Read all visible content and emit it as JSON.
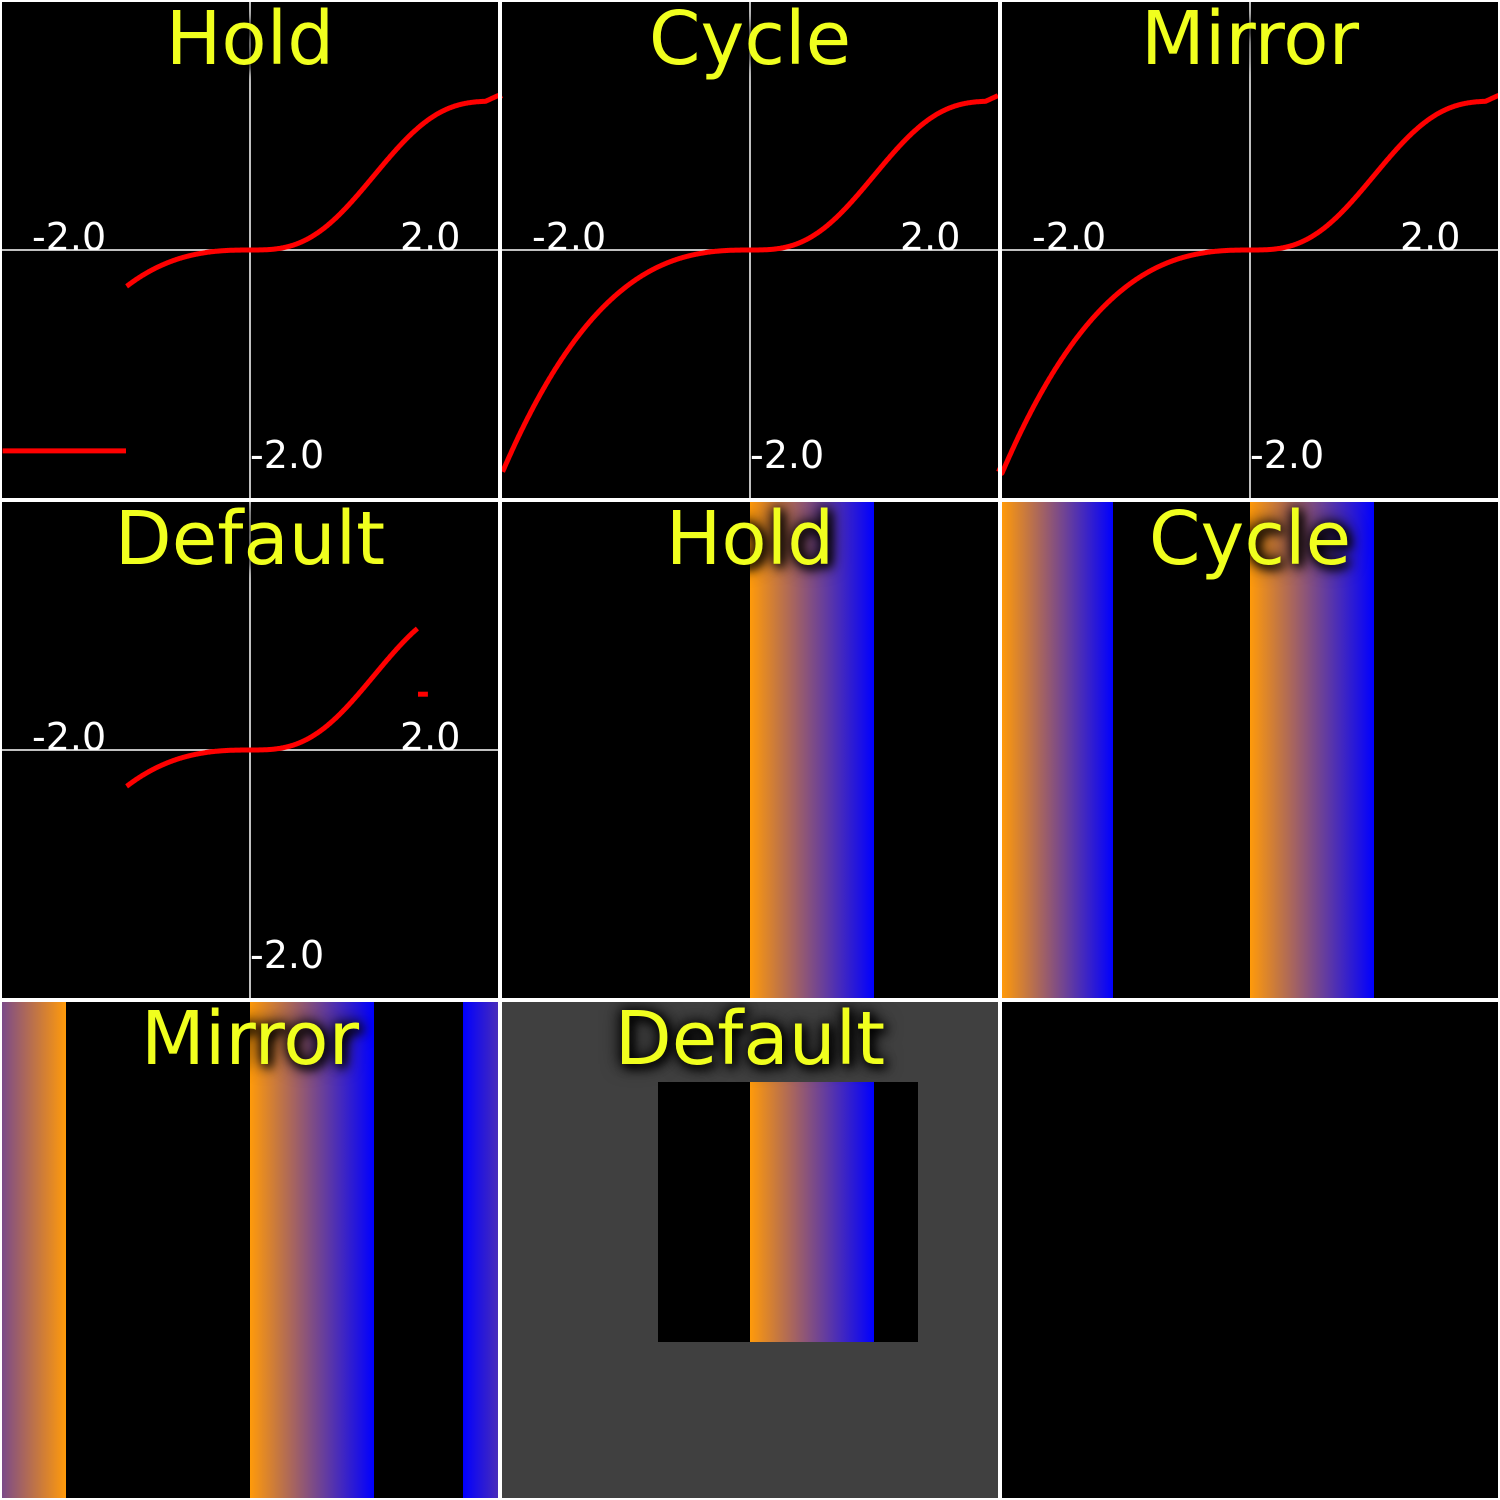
{
  "colors": {
    "background": "#000000",
    "grid_background": "#ffffff",
    "curve": "#ff0000",
    "axis": "#ffffff",
    "title": "#f0ff1e",
    "gradient_start": "#ff9a0a",
    "gradient_end": "#0000ff",
    "default_surround": "#404040"
  },
  "chart_data": [
    {
      "type": "line",
      "title": "Hold",
      "extend_mode": "hold",
      "xlim": [
        -2.0,
        2.0
      ],
      "ylim": [
        -2.0,
        2.0
      ],
      "tick_labels": {
        "x_min": "-2.0",
        "x_max": "2.0",
        "y_min": "-2.0"
      },
      "series": [
        {
          "x_range": [
            -2.0,
            2.0
          ],
          "y_range": [
            -1.62,
            1.2
          ]
        }
      ]
    },
    {
      "type": "line",
      "title": "Cycle",
      "extend_mode": "cycle",
      "xlim": [
        -2.0,
        2.0
      ],
      "ylim": [
        -2.0,
        2.0
      ],
      "tick_labels": {
        "x_min": "-2.0",
        "x_max": "2.0",
        "y_min": "-2.0"
      },
      "series": [
        {
          "x_range": [
            -2.0,
            2.0
          ],
          "y_range": [
            -1.8,
            1.24
          ]
        }
      ]
    },
    {
      "type": "line",
      "title": "Mirror",
      "extend_mode": "mirror",
      "xlim": [
        -2.0,
        2.0
      ],
      "ylim": [
        -2.0,
        2.0
      ],
      "tick_labels": {
        "x_min": "-2.0",
        "x_max": "2.0",
        "y_min": "-2.0"
      },
      "series": [
        {
          "x_range": [
            -2.0,
            2.0
          ],
          "y_range": [
            -1.8,
            1.24
          ]
        }
      ]
    },
    {
      "type": "line",
      "title": "Default",
      "extend_mode": "default",
      "xlim": [
        -2.0,
        2.0
      ],
      "ylim": [
        -2.0,
        2.0
      ],
      "tick_labels": {
        "x_min": "-2.0",
        "x_max": "2.0",
        "y_min": "-2.0"
      },
      "series": [
        {
          "x_range": [
            -2.0,
            2.0
          ],
          "y_range": [
            -1.8,
            1.24
          ],
          "default_value": 0.45
        }
      ]
    }
  ],
  "gradient_panels": [
    {
      "title": "Hold",
      "extend_mode": "hold"
    },
    {
      "title": "Cycle",
      "extend_mode": "cycle"
    },
    {
      "title": "Mirror",
      "extend_mode": "mirror"
    },
    {
      "title": "Default",
      "extend_mode": "default"
    }
  ]
}
